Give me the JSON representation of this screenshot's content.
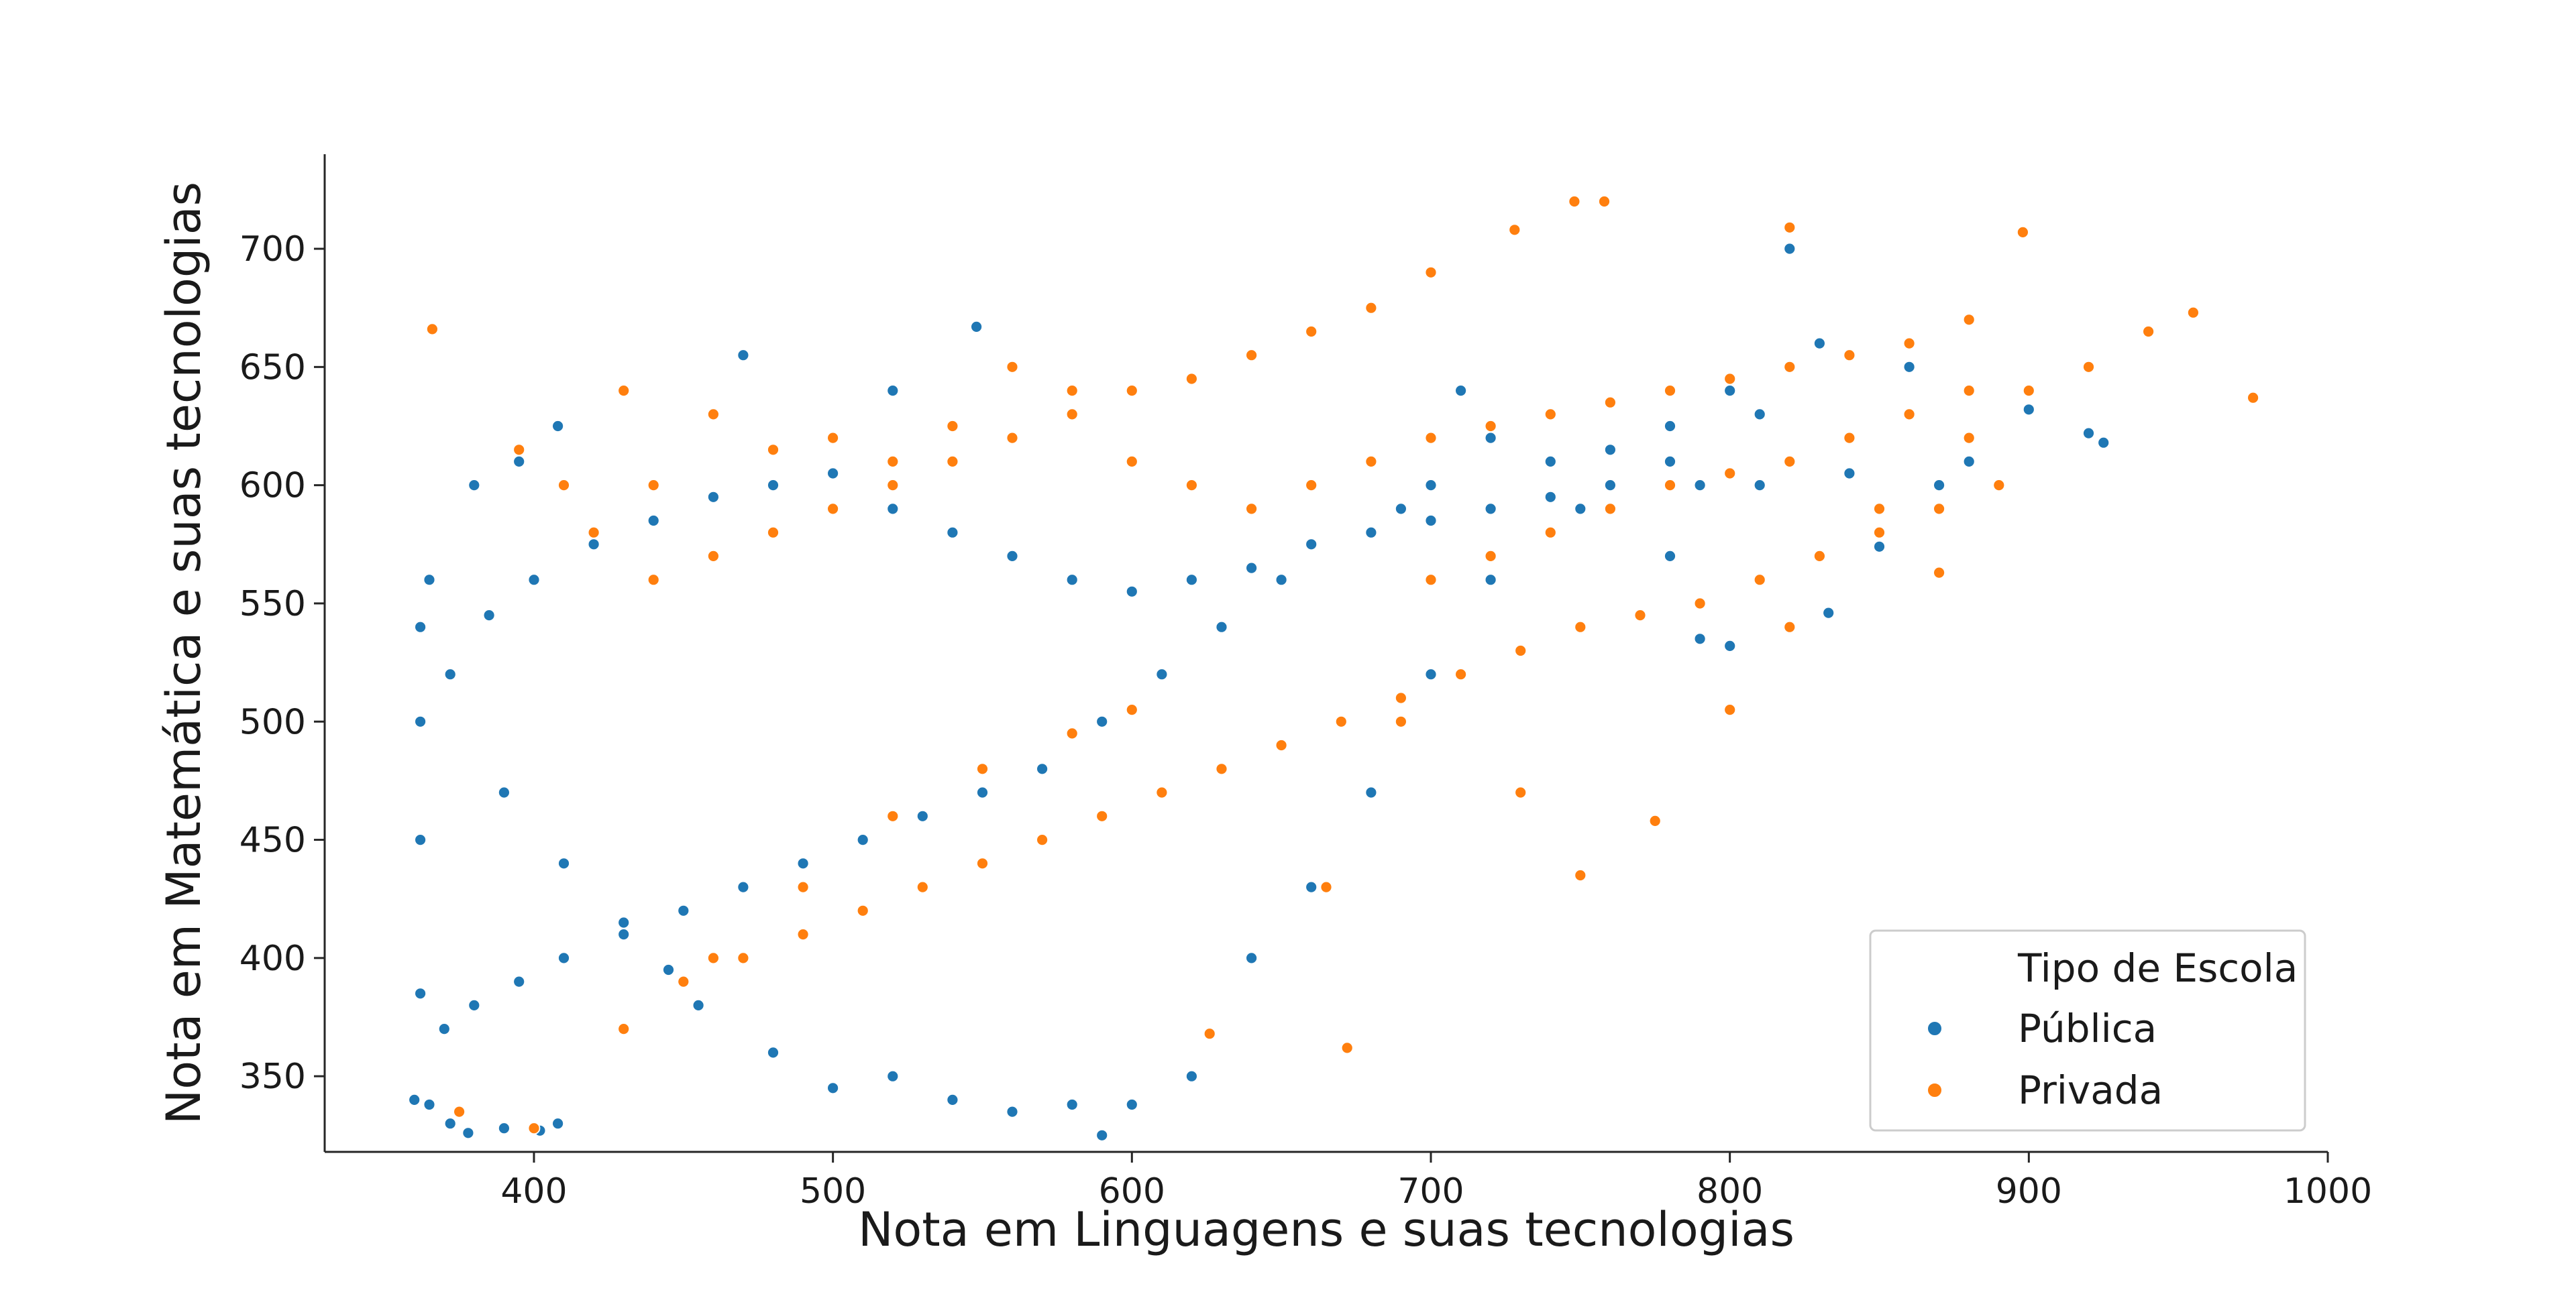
{
  "chart_data": {
    "type": "scatter",
    "xlabel": "Nota em Linguagens e suas tecnologias",
    "ylabel": "Nota em Matemática e suas tecnologias",
    "xlim": [
      330,
      1000
    ],
    "ylim": [
      318,
      740
    ],
    "x_ticks": [
      "400",
      "500",
      "600",
      "700",
      "800",
      "900",
      "1000"
    ],
    "y_ticks": [
      "350",
      "400",
      "450",
      "500",
      "550",
      "600",
      "650",
      "700"
    ],
    "grid": false,
    "legend": {
      "title": "Tipo de Escola",
      "placement": "lower-right",
      "entries": [
        {
          "label": "Pública",
          "color": "#1f77b4"
        },
        {
          "label": "Privada",
          "color": "#ff7f0e"
        }
      ]
    },
    "series": [
      {
        "name": "Pública",
        "color": "#1f77b4",
        "points": [
          [
            360,
            340
          ],
          [
            365,
            338
          ],
          [
            372,
            330
          ],
          [
            378,
            326
          ],
          [
            390,
            328
          ],
          [
            402,
            327
          ],
          [
            408,
            330
          ],
          [
            380,
            600
          ],
          [
            395,
            610
          ],
          [
            408,
            625
          ],
          [
            470,
            655
          ],
          [
            520,
            640
          ],
          [
            548,
            667
          ],
          [
            365,
            560
          ],
          [
            372,
            520
          ],
          [
            390,
            470
          ],
          [
            410,
            440
          ],
          [
            430,
            415
          ],
          [
            445,
            395
          ],
          [
            455,
            380
          ],
          [
            480,
            360
          ],
          [
            500,
            345
          ],
          [
            520,
            350
          ],
          [
            540,
            340
          ],
          [
            560,
            335
          ],
          [
            580,
            338
          ],
          [
            590,
            325
          ],
          [
            600,
            338
          ],
          [
            620,
            350
          ],
          [
            640,
            400
          ],
          [
            660,
            430
          ],
          [
            680,
            470
          ],
          [
            700,
            520
          ],
          [
            720,
            560
          ],
          [
            750,
            590
          ],
          [
            780,
            610
          ],
          [
            810,
            630
          ],
          [
            820,
            700
          ],
          [
            850,
            574
          ],
          [
            833,
            546
          ],
          [
            900,
            632
          ],
          [
            920,
            622
          ],
          [
            925,
            618
          ],
          [
            790,
            535
          ],
          [
            800,
            532
          ],
          [
            780,
            570
          ],
          [
            760,
            600
          ],
          [
            740,
            610
          ],
          [
            720,
            620
          ],
          [
            710,
            640
          ],
          [
            700,
            600
          ],
          [
            690,
            590
          ],
          [
            650,
            560
          ],
          [
            630,
            540
          ],
          [
            610,
            520
          ],
          [
            590,
            500
          ],
          [
            570,
            480
          ],
          [
            550,
            470
          ],
          [
            530,
            460
          ],
          [
            510,
            450
          ],
          [
            490,
            440
          ],
          [
            470,
            430
          ],
          [
            450,
            420
          ],
          [
            430,
            410
          ],
          [
            410,
            400
          ],
          [
            395,
            390
          ],
          [
            380,
            380
          ],
          [
            370,
            370
          ],
          [
            362,
            385
          ],
          [
            362,
            450
          ],
          [
            362,
            500
          ],
          [
            362,
            540
          ],
          [
            385,
            545
          ],
          [
            400,
            560
          ],
          [
            420,
            575
          ],
          [
            440,
            585
          ],
          [
            460,
            595
          ],
          [
            480,
            600
          ],
          [
            500,
            605
          ],
          [
            520,
            590
          ],
          [
            540,
            580
          ],
          [
            560,
            570
          ],
          [
            580,
            560
          ],
          [
            600,
            555
          ],
          [
            620,
            560
          ],
          [
            640,
            565
          ],
          [
            660,
            575
          ],
          [
            680,
            580
          ],
          [
            700,
            585
          ],
          [
            720,
            590
          ],
          [
            740,
            595
          ],
          [
            760,
            615
          ],
          [
            780,
            625
          ],
          [
            800,
            640
          ],
          [
            830,
            660
          ],
          [
            860,
            650
          ],
          [
            880,
            610
          ],
          [
            870,
            600
          ],
          [
            840,
            605
          ],
          [
            810,
            600
          ],
          [
            790,
            600
          ]
        ]
      },
      {
        "name": "Privada",
        "color": "#ff7f0e",
        "points": [
          [
            366,
            666
          ],
          [
            375,
            335
          ],
          [
            400,
            328
          ],
          [
            430,
            370
          ],
          [
            460,
            400
          ],
          [
            490,
            430
          ],
          [
            520,
            460
          ],
          [
            550,
            480
          ],
          [
            580,
            495
          ],
          [
            600,
            505
          ],
          [
            626,
            368
          ],
          [
            672,
            362
          ],
          [
            665,
            430
          ],
          [
            690,
            500
          ],
          [
            730,
            470
          ],
          [
            750,
            435
          ],
          [
            775,
            458
          ],
          [
            800,
            505
          ],
          [
            820,
            540
          ],
          [
            850,
            590
          ],
          [
            870,
            563
          ],
          [
            880,
            620
          ],
          [
            900,
            640
          ],
          [
            920,
            650
          ],
          [
            940,
            665
          ],
          [
            955,
            673
          ],
          [
            975,
            637
          ],
          [
            898,
            707
          ],
          [
            820,
            709
          ],
          [
            758,
            720
          ],
          [
            748,
            720
          ],
          [
            728,
            708
          ],
          [
            700,
            690
          ],
          [
            680,
            675
          ],
          [
            660,
            665
          ],
          [
            640,
            655
          ],
          [
            620,
            645
          ],
          [
            600,
            640
          ],
          [
            580,
            630
          ],
          [
            560,
            620
          ],
          [
            540,
            610
          ],
          [
            520,
            600
          ],
          [
            500,
            590
          ],
          [
            480,
            580
          ],
          [
            460,
            570
          ],
          [
            440,
            560
          ],
          [
            420,
            580
          ],
          [
            410,
            600
          ],
          [
            395,
            615
          ],
          [
            430,
            640
          ],
          [
            440,
            600
          ],
          [
            460,
            630
          ],
          [
            480,
            615
          ],
          [
            500,
            620
          ],
          [
            520,
            610
          ],
          [
            540,
            625
          ],
          [
            560,
            650
          ],
          [
            580,
            640
          ],
          [
            600,
            610
          ],
          [
            620,
            600
          ],
          [
            640,
            590
          ],
          [
            660,
            600
          ],
          [
            680,
            610
          ],
          [
            700,
            620
          ],
          [
            720,
            625
          ],
          [
            740,
            630
          ],
          [
            760,
            635
          ],
          [
            780,
            640
          ],
          [
            800,
            645
          ],
          [
            820,
            650
          ],
          [
            840,
            655
          ],
          [
            860,
            660
          ],
          [
            880,
            670
          ],
          [
            700,
            560
          ],
          [
            720,
            570
          ],
          [
            740,
            580
          ],
          [
            760,
            590
          ],
          [
            780,
            600
          ],
          [
            800,
            605
          ],
          [
            820,
            610
          ],
          [
            840,
            620
          ],
          [
            860,
            630
          ],
          [
            880,
            640
          ],
          [
            890,
            600
          ],
          [
            870,
            590
          ],
          [
            850,
            580
          ],
          [
            830,
            570
          ],
          [
            810,
            560
          ],
          [
            790,
            550
          ],
          [
            770,
            545
          ],
          [
            750,
            540
          ],
          [
            730,
            530
          ],
          [
            710,
            520
          ],
          [
            690,
            510
          ],
          [
            670,
            500
          ],
          [
            650,
            490
          ],
          [
            630,
            480
          ],
          [
            610,
            470
          ],
          [
            590,
            460
          ],
          [
            570,
            450
          ],
          [
            550,
            440
          ],
          [
            530,
            430
          ],
          [
            510,
            420
          ],
          [
            490,
            410
          ],
          [
            470,
            400
          ],
          [
            450,
            390
          ]
        ]
      }
    ]
  }
}
